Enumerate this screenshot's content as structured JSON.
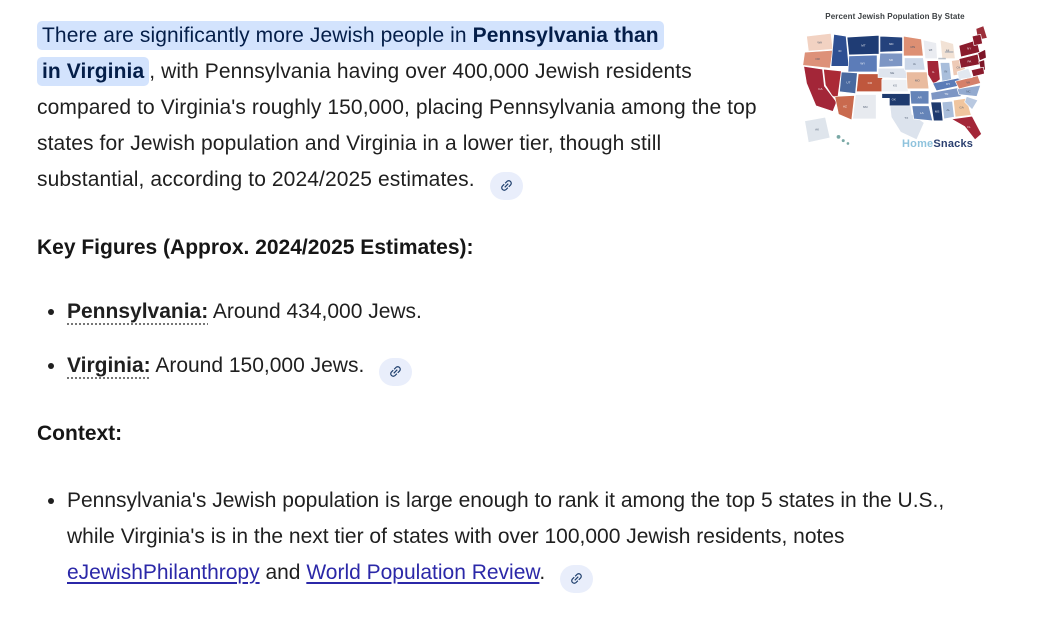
{
  "answer": {
    "paragraph": {
      "highlight_line1_regular": "There are significantly more Jewish people in ",
      "highlight_line1_bold": "Pennsylvania than",
      "highlight_line2_bold": "in Virginia",
      "rest": ", with Pennsylvania having over 400,000 Jewish residents compared to Virginia's roughly 150,000, placing Pennsylvania among the top states for Jewish population and Virginia in a lower tier, though still substantial, according to 2024/2025 estimates."
    },
    "key_figures": {
      "heading": "Key Figures (Approx. 2024/2025 Estimates):",
      "items": [
        {
          "term": "Pennsylvania:",
          "text": " Around 434,000 Jews.",
          "has_link_chip": false
        },
        {
          "term": "Virginia:",
          "text": " Around 150,000 Jews.",
          "has_link_chip": true
        }
      ]
    },
    "context": {
      "heading": "Context:",
      "bullet": {
        "part1": "Pennsylvania's Jewish population is large enough to rank it among the top 5 states in the U.S., while Virginia's is in the next tier of states with over 100,000 Jewish residents, notes ",
        "link1": "eJewishPhilanthropy",
        "part2": " and ",
        "link2": "World Population Review",
        "part3": "."
      }
    }
  },
  "map": {
    "title": "Percent Jewish Population By State",
    "watermark": {
      "part1": "Home",
      "part2": "Snacks"
    },
    "watermark_colors": {
      "part1": "#8fc3dd",
      "part2": "#2a3f6f"
    },
    "title_color": "#3c4043",
    "states": [
      {
        "id": "WA",
        "color": "#f2d2c2"
      },
      {
        "id": "OR",
        "color": "#dd9179"
      },
      {
        "id": "CA",
        "color": "#a32638"
      },
      {
        "id": "NV",
        "color": "#ab2a36"
      },
      {
        "id": "ID",
        "color": "#2e4f92"
      },
      {
        "id": "MT",
        "color": "#1f3c74"
      },
      {
        "id": "WY",
        "color": "#5c7cb8"
      },
      {
        "id": "UT",
        "color": "#49699f"
      },
      {
        "id": "CO",
        "color": "#bf573d"
      },
      {
        "id": "AZ",
        "color": "#c96a4e"
      },
      {
        "id": "NM",
        "color": "#e7eaef"
      },
      {
        "id": "ND",
        "color": "#24427c"
      },
      {
        "id": "SD",
        "color": "#7d96c4"
      },
      {
        "id": "NE",
        "color": "#dfe5ee"
      },
      {
        "id": "KS",
        "color": "#eef0f4"
      },
      {
        "id": "TX",
        "color": "#dce3ed"
      },
      {
        "id": "OK",
        "color": "#1e3a6e"
      },
      {
        "id": "MN",
        "color": "#dd8f73"
      },
      {
        "id": "IA",
        "color": "#ccd7e8"
      },
      {
        "id": "MO",
        "color": "#e9bb9f"
      },
      {
        "id": "AR",
        "color": "#6584b8"
      },
      {
        "id": "LA",
        "color": "#6584b8"
      },
      {
        "id": "WI",
        "color": "#eaecf1"
      },
      {
        "id": "IL",
        "color": "#a32638"
      },
      {
        "id": "MI",
        "color": "#f2e2d5"
      },
      {
        "id": "IN",
        "color": "#a9bedb"
      },
      {
        "id": "OH",
        "color": "#eecab6"
      },
      {
        "id": "KY",
        "color": "#5c7cb8"
      },
      {
        "id": "TN",
        "color": "#7d96c4"
      },
      {
        "id": "MS",
        "color": "#1e3a6e"
      },
      {
        "id": "AL",
        "color": "#a9bedb"
      },
      {
        "id": "GA",
        "color": "#f0c59e"
      },
      {
        "id": "FL",
        "color": "#a32638"
      },
      {
        "id": "SC",
        "color": "#b9c9e1"
      },
      {
        "id": "NC",
        "color": "#93aacf"
      },
      {
        "id": "VA",
        "color": "#d5806a"
      },
      {
        "id": "WV",
        "color": "#e2e8f0"
      },
      {
        "id": "PA",
        "color": "#8a1b2c"
      },
      {
        "id": "NY",
        "color": "#8a1b2c"
      },
      {
        "id": "ME",
        "color": "#9c2f3a"
      },
      {
        "id": "VTNH",
        "color": "#8a1b2c"
      },
      {
        "id": "MACTRI",
        "color": "#7c1527"
      },
      {
        "id": "NJ",
        "color": "#7c1527"
      },
      {
        "id": "MDDE",
        "color": "#8a1b2c"
      },
      {
        "id": "AK",
        "color": "#dfe5ec"
      },
      {
        "id": "HI",
        "color": "#79a8a5"
      }
    ]
  },
  "icons": {
    "link_chip": "link-icon"
  },
  "colors": {
    "highlight_bg": "#d3e3fd",
    "highlight_text": "#041e49",
    "body_text": "#1f1f1f",
    "link": "#2b28a8",
    "chip_bg": "#e9eefb",
    "chip_icon": "#20406e",
    "term_underline": "#767676"
  }
}
